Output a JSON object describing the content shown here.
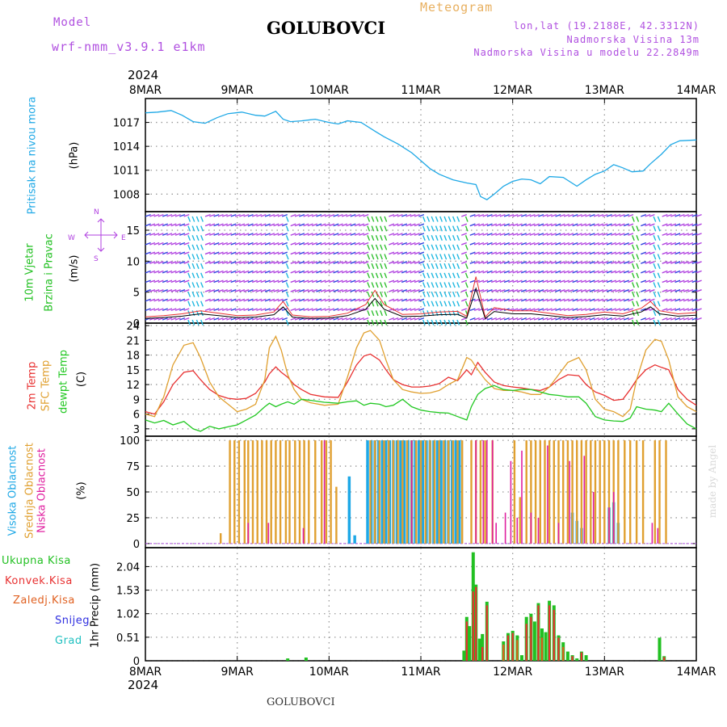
{
  "header": {
    "model_label": "Model",
    "model_name": "wrf-nmm_v3.9.1 e1km",
    "station": "GOLUBOVCI",
    "title": "Meteogram",
    "coords": "lon,lat (19.2188E, 42.3312N)",
    "elevation": "Nadmorska Visina 13m",
    "model_elevation": "Nadmorska Visina u modelu 22.2849m",
    "year_top": "2024",
    "year_bottom": "2024",
    "footer_station": "GOLUBOVCI",
    "credit": "made by Angel"
  },
  "colors": {
    "pressure": "#1ea8e6",
    "wind_label": "#22c022",
    "wind_dir": "#b040e0",
    "temp2m": "#e83030",
    "sfc_temp": "#e0a030",
    "dewpt": "#22c822",
    "cloud_high": "#1ea8e6",
    "cloud_mid": "#e0a030",
    "cloud_low": "#e020a0",
    "rain_total": "#22c022",
    "rain_conv": "#e83030",
    "rain_strat": "#e06020",
    "snow": "#3030e0",
    "hail": "#20c0c0",
    "grid": "#999999"
  },
  "chart_data": [
    {
      "type": "line",
      "name": "pressure",
      "ylabel_line1": "Pritisak na nivou mora",
      "ylabel_unit": "(hPa)",
      "x_ticks": [
        "8MAR",
        "9MAR",
        "10MAR",
        "11MAR",
        "12MAR",
        "13MAR",
        "14MAR"
      ],
      "xlim": [
        0,
        6
      ],
      "ylim": [
        1005.8,
        1020
      ],
      "yticks": [
        1008,
        1011,
        1014,
        1017
      ],
      "x": [
        0,
        0.13,
        0.28,
        0.4,
        0.52,
        0.65,
        0.78,
        0.9,
        1.05,
        1.2,
        1.3,
        1.42,
        1.5,
        1.58,
        1.7,
        1.85,
        2.0,
        2.1,
        2.2,
        2.35,
        2.5,
        2.6,
        2.75,
        2.9,
        3.0,
        3.1,
        3.2,
        3.35,
        3.5,
        3.6,
        3.65,
        3.72,
        3.8,
        3.9,
        4.0,
        4.1,
        4.2,
        4.3,
        4.4,
        4.55,
        4.7,
        4.8,
        4.9,
        5.0,
        5.1,
        5.2,
        5.3,
        5.42,
        5.5,
        5.62,
        5.72,
        5.82,
        6.0
      ],
      "y": [
        1018.2,
        1018.3,
        1018.5,
        1017.9,
        1017.1,
        1016.9,
        1017.6,
        1018.1,
        1018.3,
        1017.9,
        1017.8,
        1018.4,
        1017.4,
        1017.1,
        1017.2,
        1017.4,
        1017.0,
        1016.8,
        1017.2,
        1017.0,
        1015.9,
        1015.2,
        1014.3,
        1013.2,
        1012.2,
        1011.2,
        1010.5,
        1009.8,
        1009.4,
        1009.2,
        1007.7,
        1007.3,
        1008.0,
        1009.0,
        1009.6,
        1009.9,
        1009.8,
        1009.3,
        1010.2,
        1010.1,
        1009.0,
        1009.8,
        1010.5,
        1010.9,
        1011.7,
        1011.3,
        1010.8,
        1010.9,
        1011.8,
        1013.0,
        1014.2,
        1014.7,
        1014.8
      ]
    },
    {
      "type": "line",
      "name": "wind",
      "ylabel_line1": "10m Vjetar",
      "ylabel_line2": "Brzina i Pravac",
      "ylabel_unit": "(m/s)",
      "compass_n": "N",
      "compass_s": "S",
      "compass_w": "W",
      "compass_e": "E",
      "xlim": [
        0,
        6
      ],
      "ylim": [
        0,
        18
      ],
      "yticks": [
        0,
        5,
        10,
        15
      ],
      "x": [
        0,
        0.2,
        0.4,
        0.6,
        0.8,
        1.0,
        1.2,
        1.4,
        1.5,
        1.6,
        1.8,
        2.0,
        2.2,
        2.4,
        2.5,
        2.6,
        2.8,
        3.0,
        3.2,
        3.4,
        3.5,
        3.6,
        3.7,
        3.8,
        4.0,
        4.2,
        4.4,
        4.6,
        4.8,
        5.0,
        5.2,
        5.4,
        5.5,
        5.6,
        5.8,
        6.0
      ],
      "y": [
        1.0,
        1.2,
        1.5,
        2.0,
        1.6,
        1.2,
        1.3,
        1.8,
        3.5,
        1.3,
        1.0,
        1.1,
        1.6,
        3.0,
        5.3,
        3.0,
        1.4,
        1.5,
        1.8,
        1.9,
        1.1,
        7.5,
        1.0,
        2.5,
        2.0,
        2.0,
        1.6,
        1.2,
        1.4,
        1.8,
        1.5,
        2.4,
        3.5,
        2.0,
        1.5,
        1.7
      ]
    },
    {
      "type": "line",
      "name": "temperature",
      "ylabel_line1": "2m Temp",
      "ylabel_line2": "SFC Temp",
      "ylabel_line3": "dewpt Temp",
      "ylabel_unit": "(C)",
      "xlim": [
        0,
        6
      ],
      "ylim": [
        1.5,
        24.5
      ],
      "yticks": [
        3,
        6,
        9,
        12,
        15,
        18,
        21,
        24
      ],
      "x": [
        0,
        0.1,
        0.2,
        0.3,
        0.42,
        0.52,
        0.6,
        0.7,
        0.8,
        0.9,
        1.0,
        1.1,
        1.2,
        1.3,
        1.35,
        1.42,
        1.48,
        1.55,
        1.62,
        1.7,
        1.8,
        1.95,
        2.1,
        2.2,
        2.3,
        2.38,
        2.45,
        2.55,
        2.62,
        2.7,
        2.8,
        2.9,
        3.0,
        3.1,
        3.2,
        3.3,
        3.4,
        3.5,
        3.55,
        3.62,
        3.7,
        3.8,
        3.9,
        4.0,
        4.1,
        4.2,
        4.3,
        4.4,
        4.5,
        4.6,
        4.72,
        4.8,
        4.9,
        5.0,
        5.1,
        5.2,
        5.28,
        5.35,
        5.45,
        5.55,
        5.62,
        5.7,
        5.8,
        5.9,
        6.0
      ],
      "series": [
        {
          "name": "2m",
          "y": [
            6.5,
            6.0,
            8.5,
            12.0,
            14.5,
            14.8,
            13.0,
            11.0,
            9.8,
            9.2,
            9.0,
            9.2,
            10.2,
            12.5,
            14.2,
            15.6,
            14.5,
            13.5,
            12.0,
            11.0,
            10.0,
            9.5,
            9.4,
            12.5,
            16.0,
            17.8,
            18.2,
            17.0,
            15.0,
            13.0,
            12.0,
            11.5,
            11.5,
            11.7,
            12.2,
            13.5,
            12.8,
            15.0,
            14.0,
            16.5,
            14.5,
            12.5,
            11.8,
            11.5,
            11.3,
            11.0,
            10.8,
            11.5,
            13.0,
            14.0,
            13.8,
            12.0,
            10.5,
            9.8,
            8.8,
            9.0,
            11.0,
            13.0,
            15.0,
            16.0,
            15.5,
            15.0,
            11.0,
            9.0,
            7.8
          ]
        },
        {
          "name": "SFC",
          "y": [
            6.0,
            5.5,
            9.5,
            16.0,
            20.0,
            20.5,
            17.5,
            12.5,
            9.5,
            8.0,
            6.5,
            7.0,
            8.0,
            13.0,
            19.5,
            21.8,
            19.0,
            14.0,
            11.0,
            9.0,
            8.3,
            7.8,
            8.0,
            13.5,
            19.5,
            22.5,
            23.0,
            21.0,
            17.0,
            13.0,
            11.0,
            10.5,
            10.2,
            10.3,
            10.8,
            12.0,
            13.0,
            17.5,
            17.0,
            15.0,
            13.0,
            11.2,
            10.8,
            10.8,
            10.5,
            10.0,
            10.0,
            11.5,
            14.0,
            16.5,
            17.5,
            15.0,
            9.0,
            7.0,
            6.5,
            5.5,
            7.0,
            13.0,
            19.0,
            21.2,
            20.8,
            17.0,
            9.5,
            7.5,
            6.5
          ]
        },
        {
          "name": "dewpt",
          "y": [
            4.8,
            4.2,
            4.7,
            3.8,
            4.5,
            3.0,
            2.5,
            3.5,
            3.0,
            3.4,
            3.8,
            4.8,
            5.8,
            7.5,
            8.2,
            7.5,
            8.0,
            8.5,
            8.0,
            9.0,
            8.8,
            8.4,
            8.2,
            8.5,
            8.7,
            7.8,
            8.2,
            8.0,
            7.5,
            7.8,
            9.0,
            7.5,
            6.8,
            6.5,
            6.3,
            6.2,
            5.5,
            4.8,
            7.5,
            10.0,
            11.2,
            11.8,
            11.0,
            10.8,
            11.0,
            11.0,
            10.5,
            10.0,
            9.8,
            9.5,
            9.5,
            8.2,
            5.5,
            4.8,
            4.6,
            4.5,
            5.2,
            7.5,
            7.0,
            6.8,
            6.5,
            8.2,
            6.0,
            4.0,
            3.0
          ]
        }
      ]
    },
    {
      "type": "bar",
      "name": "clouds",
      "ylabel_line1": "Visoka Oblacnost",
      "ylabel_line2": "Srednja Oblacnost",
      "ylabel_line3": "Niska Oblacnost",
      "ylabel_unit": "(%)",
      "xlim": [
        0,
        6
      ],
      "ylim": [
        -4,
        104
      ],
      "yticks": [
        0,
        25,
        50,
        75,
        100
      ],
      "series": [
        {
          "name": "high",
          "x": [
            2.22,
            2.28,
            2.42,
            2.46,
            2.5,
            2.54,
            2.58,
            2.62,
            2.66,
            2.7,
            2.74,
            2.78,
            2.82,
            2.86,
            2.9,
            2.94,
            2.98,
            3.02,
            3.06,
            3.1,
            3.14,
            3.18,
            3.22,
            3.26,
            3.3,
            3.34,
            3.38,
            3.42,
            4.65,
            4.7,
            4.75,
            5.05,
            5.1,
            5.15
          ],
          "y": [
            65,
            8,
            100,
            100,
            100,
            100,
            100,
            100,
            100,
            100,
            100,
            100,
            100,
            100,
            100,
            100,
            100,
            100,
            100,
            100,
            100,
            100,
            100,
            100,
            100,
            100,
            100,
            100,
            30,
            22,
            15,
            35,
            40,
            20
          ]
        },
        {
          "name": "mid",
          "x": [
            0.82,
            0.92,
            0.97,
            1.02,
            1.08,
            1.12,
            1.17,
            1.22,
            1.27,
            1.32,
            1.37,
            1.42,
            1.47,
            1.53,
            1.57,
            1.63,
            1.68,
            1.73,
            1.78,
            1.85,
            1.92,
            1.97,
            2.02,
            2.08,
            2.45,
            2.5,
            2.55,
            2.6,
            2.65,
            2.7,
            2.75,
            2.8,
            2.85,
            2.9,
            2.95,
            3.0,
            3.05,
            3.1,
            3.15,
            3.2,
            3.25,
            3.3,
            3.35,
            3.4,
            3.45,
            3.55,
            3.6,
            3.65,
            3.7,
            3.78,
            4.02,
            4.08,
            4.15,
            4.2,
            4.25,
            4.3,
            4.35,
            4.4,
            4.45,
            4.5,
            4.55,
            4.6,
            4.65,
            4.7,
            4.75,
            4.8,
            4.85,
            4.9,
            4.95,
            5.0,
            5.05,
            5.1,
            5.15,
            5.22,
            5.28,
            5.35,
            5.42,
            5.55,
            5.6,
            5.67
          ],
          "y": [
            10,
            100,
            100,
            100,
            100,
            100,
            100,
            100,
            100,
            100,
            100,
            100,
            100,
            100,
            100,
            100,
            100,
            100,
            100,
            100,
            100,
            100,
            100,
            55,
            100,
            100,
            100,
            100,
            100,
            100,
            100,
            100,
            100,
            100,
            100,
            100,
            100,
            100,
            100,
            100,
            100,
            100,
            100,
            100,
            100,
            100,
            100,
            100,
            100,
            100,
            100,
            45,
            100,
            100,
            100,
            100,
            100,
            100,
            100,
            100,
            100,
            100,
            100,
            100,
            100,
            100,
            100,
            100,
            100,
            100,
            100,
            100,
            100,
            100,
            100,
            100,
            100,
            100,
            100,
            100
          ]
        },
        {
          "name": "low",
          "x": [
            1.12,
            1.34,
            1.72,
            1.95,
            2.9,
            3.6,
            3.68,
            3.72,
            3.78,
            3.82,
            3.92,
            3.98,
            4.05,
            4.1,
            4.2,
            4.28,
            4.38,
            4.5,
            4.62,
            4.78,
            4.88,
            5.05,
            5.1,
            5.52,
            5.58
          ],
          "y": [
            20,
            20,
            15,
            100,
            100,
            100,
            100,
            100,
            100,
            20,
            30,
            80,
            25,
            90,
            30,
            25,
            95,
            20,
            80,
            85,
            50,
            35,
            50,
            20,
            15
          ]
        }
      ]
    },
    {
      "type": "bar",
      "name": "precipitation",
      "legend": [
        "Ukupna Kisa",
        "Konvek.Kisa",
        "Zaledj.Kisa",
        "Snijeg",
        "Grad"
      ],
      "ylabel_line1": "1hr Precip (mm)",
      "x_ticks": [
        "8MAR",
        "9MAR",
        "10MAR",
        "11MAR",
        "12MAR",
        "13MAR",
        "14MAR"
      ],
      "xlim": [
        0,
        6
      ],
      "ylim": [
        0,
        2.45
      ],
      "yticks": [
        0,
        0.51,
        1.02,
        1.53,
        2.04
      ],
      "series": [
        {
          "name": "Ukupna Kisa",
          "x": [
            1.55,
            1.75,
            3.47,
            3.5,
            3.53,
            3.57,
            3.6,
            3.64,
            3.67,
            3.72,
            3.9,
            3.95,
            4.0,
            4.05,
            4.1,
            4.15,
            4.2,
            4.24,
            4.28,
            4.32,
            4.36,
            4.4,
            4.45,
            4.5,
            4.55,
            4.6,
            4.65,
            4.7,
            4.75,
            4.8,
            5.6,
            5.65
          ],
          "y": [
            0.05,
            0.07,
            0.22,
            0.95,
            0.75,
            2.35,
            1.65,
            0.48,
            0.58,
            1.28,
            0.42,
            0.6,
            0.65,
            0.55,
            0.12,
            0.95,
            1.02,
            0.85,
            1.25,
            0.7,
            0.62,
            1.3,
            1.2,
            0.55,
            0.4,
            0.2,
            0.12,
            0.05,
            0.2,
            0.12,
            0.5,
            0.1
          ]
        },
        {
          "name": "Konvek.Kisa",
          "x": [
            3.5,
            3.57,
            3.6,
            3.67,
            3.72,
            3.95,
            4.0,
            4.15,
            4.2,
            4.28,
            4.4,
            4.45,
            4.5,
            4.65,
            4.75,
            5.65
          ],
          "y": [
            0.85,
            1.5,
            1.6,
            0.3,
            1.2,
            0.55,
            0.6,
            0.8,
            0.95,
            1.2,
            1.2,
            1.1,
            0.5,
            0.1,
            0.18,
            0.08
          ]
        },
        {
          "name": "Zaledj.Kisa",
          "x": [
            3.9,
            4.05,
            4.32,
            4.55
          ],
          "y": [
            0.35,
            0.45,
            0.5,
            0.3
          ]
        },
        {
          "name": "Snijeg",
          "x": [],
          "y": []
        },
        {
          "name": "Grad",
          "x": [],
          "y": []
        }
      ]
    }
  ]
}
